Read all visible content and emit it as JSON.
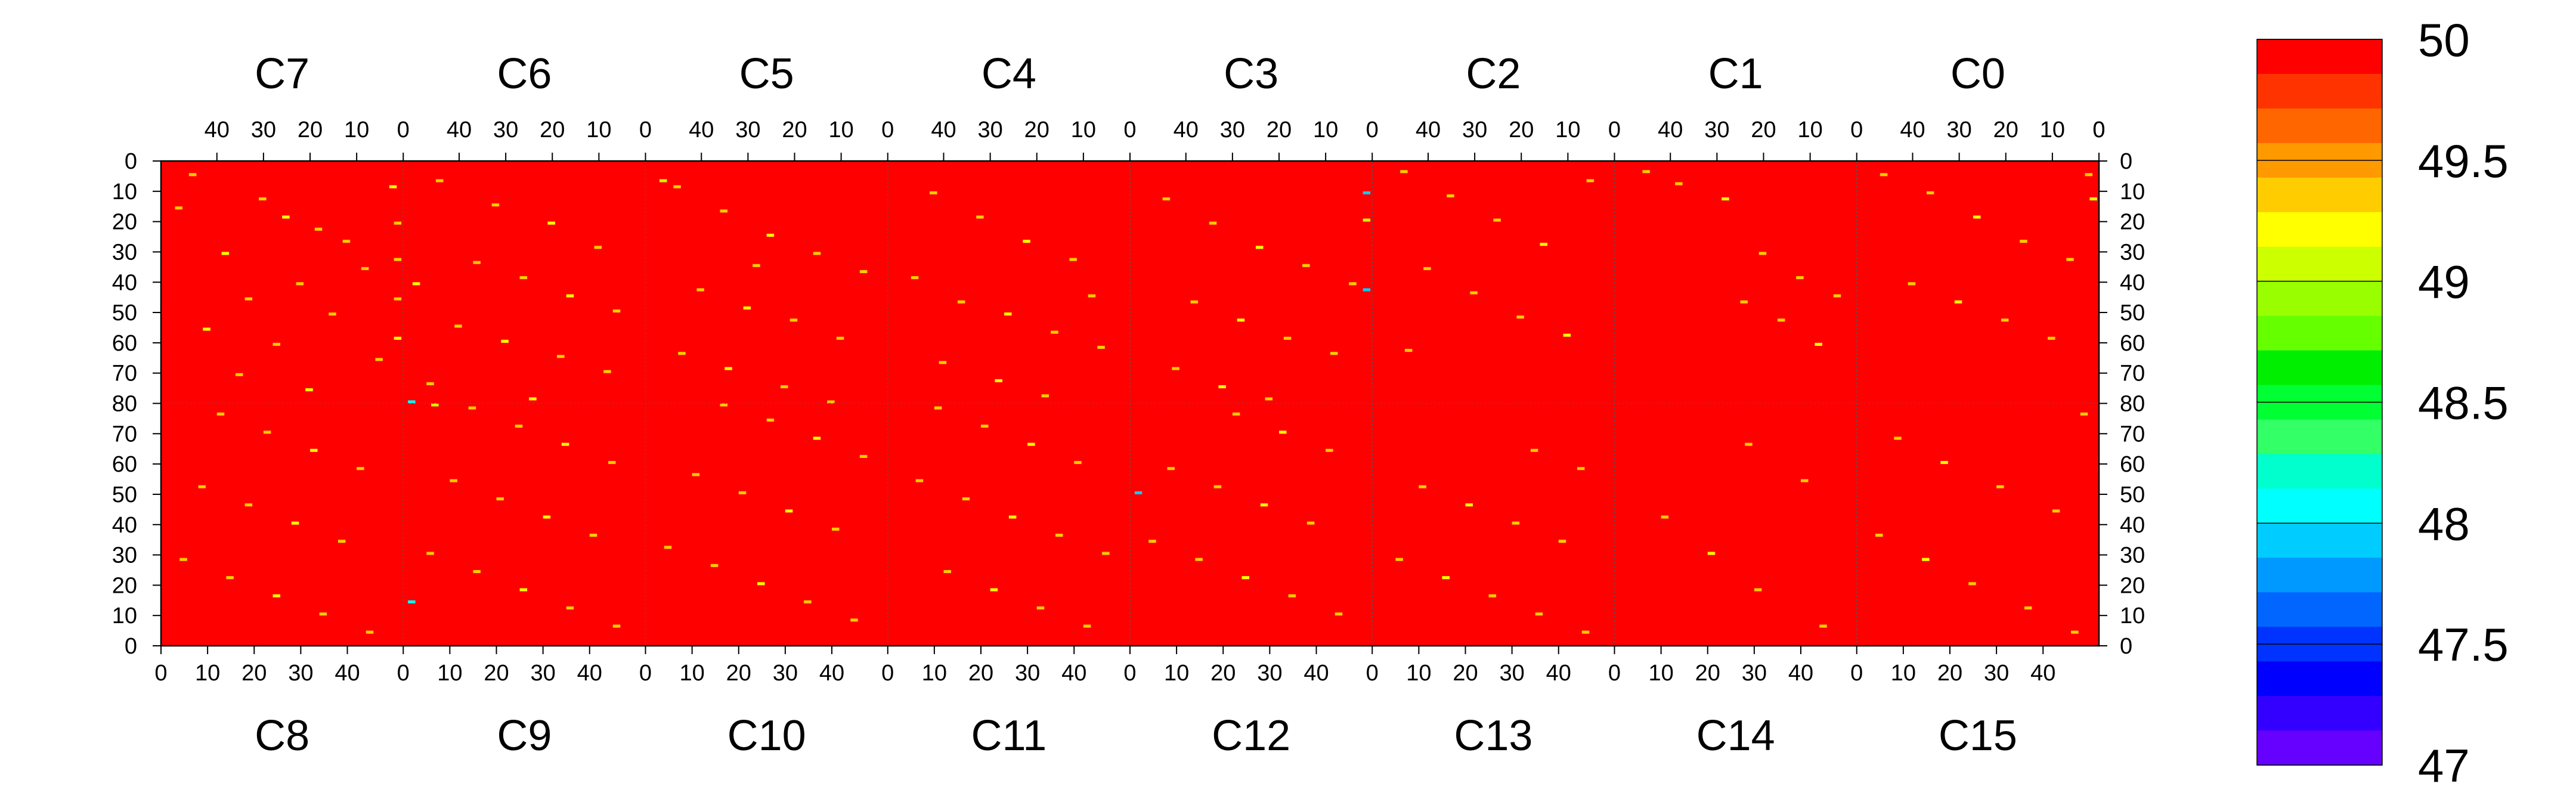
{
  "chart_data": {
    "type": "heatmap",
    "title": "",
    "top_chips": [
      "C7",
      "C6",
      "C5",
      "C4",
      "C3",
      "C2",
      "C1",
      "C0"
    ],
    "bottom_chips": [
      "C8",
      "C9",
      "C10",
      "C11",
      "C12",
      "C13",
      "C14",
      "C15"
    ],
    "x_range_per_chip": [
      0,
      52
    ],
    "x_ticks_top": [
      40,
      30,
      20,
      10,
      0
    ],
    "x_ticks_bottom": [
      0,
      10,
      20,
      30,
      40
    ],
    "y_range_per_half": [
      0,
      80
    ],
    "y_ticks_top": [
      0,
      10,
      20,
      30,
      40,
      50,
      60,
      70,
      80
    ],
    "y_ticks_bottom": [
      70,
      60,
      50,
      40,
      30,
      20,
      10,
      0
    ],
    "z_range": [
      47,
      50
    ],
    "background_value": 50,
    "colorbar": {
      "labels": [
        "50",
        "49.5",
        "49",
        "48.5",
        "48",
        "47.5",
        "47"
      ],
      "label_values": [
        50,
        49.5,
        49,
        48.5,
        48,
        47.5,
        47
      ],
      "colors": [
        "#ff0000",
        "#ff3300",
        "#ff6600",
        "#ff9900",
        "#ffcc00",
        "#ffff00",
        "#ccff00",
        "#99ff00",
        "#66ff00",
        "#00ee00",
        "#00ff33",
        "#33ff66",
        "#00ffcc",
        "#00ffff",
        "#00ccff",
        "#0099ff",
        "#0066ff",
        "#0033ff",
        "#0000ff",
        "#3300ff",
        "#6600ff"
      ]
    },
    "points": [
      [
        "C7",
        45,
        4,
        49.4
      ],
      [
        "C7",
        30,
        12,
        49.3
      ],
      [
        "C7",
        25,
        18,
        49.2
      ],
      [
        "C7",
        18,
        22,
        49.4
      ],
      [
        "C7",
        12,
        26,
        49.3
      ],
      [
        "C7",
        38,
        30,
        49.2
      ],
      [
        "C7",
        8,
        35,
        49.4
      ],
      [
        "C7",
        22,
        40,
        49.3
      ],
      [
        "C7",
        33,
        45,
        49.3
      ],
      [
        "C7",
        15,
        50,
        49.4
      ],
      [
        "C7",
        42,
        55,
        49.2
      ],
      [
        "C7",
        27,
        60,
        49.3
      ],
      [
        "C7",
        5,
        65,
        49.4
      ],
      [
        "C7",
        35,
        70,
        49.3
      ],
      [
        "C7",
        20,
        75,
        49.2
      ],
      [
        "C7",
        48,
        15,
        49.3
      ],
      [
        "C7",
        2,
        8,
        49.2
      ],
      [
        "C7",
        1,
        20,
        49.3
      ],
      [
        "C7",
        1,
        32,
        49.4
      ],
      [
        "C7",
        1,
        45,
        49.3
      ],
      [
        "C7",
        1,
        58,
        49.2
      ],
      [
        "C6",
        44,
        6,
        49.4
      ],
      [
        "C6",
        32,
        14,
        49.3
      ],
      [
        "C6",
        20,
        20,
        49.2
      ],
      [
        "C6",
        10,
        28,
        49.3
      ],
      [
        "C6",
        36,
        33,
        49.4
      ],
      [
        "C6",
        26,
        38,
        49.3
      ],
      [
        "C6",
        16,
        44,
        49.2
      ],
      [
        "C6",
        6,
        49,
        49.4
      ],
      [
        "C6",
        40,
        54,
        49.3
      ],
      [
        "C6",
        30,
        59,
        49.2
      ],
      [
        "C6",
        18,
        64,
        49.3
      ],
      [
        "C6",
        8,
        69,
        49.4
      ],
      [
        "C6",
        46,
        73,
        49.3
      ],
      [
        "C6",
        24,
        78,
        49.2
      ],
      [
        "C6",
        49,
        40,
        49.2
      ],
      [
        "C6",
        50,
        79,
        48.1
      ],
      [
        "C5",
        45,
        8,
        49.3
      ],
      [
        "C5",
        35,
        16,
        49.4
      ],
      [
        "C5",
        25,
        24,
        49.2
      ],
      [
        "C5",
        15,
        30,
        49.3
      ],
      [
        "C5",
        5,
        36,
        49.4
      ],
      [
        "C5",
        40,
        42,
        49.3
      ],
      [
        "C5",
        30,
        48,
        49.2
      ],
      [
        "C5",
        20,
        52,
        49.3
      ],
      [
        "C5",
        10,
        58,
        49.4
      ],
      [
        "C5",
        44,
        63,
        49.3
      ],
      [
        "C5",
        34,
        68,
        49.2
      ],
      [
        "C5",
        22,
        74,
        49.3
      ],
      [
        "C5",
        12,
        79,
        49.4
      ],
      [
        "C5",
        48,
        6,
        49.1
      ],
      [
        "C5",
        28,
        34,
        49.3
      ],
      [
        "C4",
        42,
        10,
        49.4
      ],
      [
        "C4",
        32,
        18,
        49.3
      ],
      [
        "C4",
        22,
        26,
        49.2
      ],
      [
        "C4",
        12,
        32,
        49.3
      ],
      [
        "C4",
        46,
        38,
        49.4
      ],
      [
        "C4",
        36,
        46,
        49.3
      ],
      [
        "C4",
        26,
        50,
        49.2
      ],
      [
        "C4",
        16,
        56,
        49.3
      ],
      [
        "C4",
        6,
        61,
        49.4
      ],
      [
        "C4",
        40,
        66,
        49.3
      ],
      [
        "C4",
        28,
        72,
        49.2
      ],
      [
        "C4",
        18,
        77,
        49.3
      ],
      [
        "C4",
        8,
        44,
        49.4
      ],
      [
        "C3",
        44,
        12,
        49.3
      ],
      [
        "C3",
        34,
        20,
        49.4
      ],
      [
        "C3",
        24,
        28,
        49.2
      ],
      [
        "C3",
        14,
        34,
        49.3
      ],
      [
        "C3",
        4,
        40,
        49.4
      ],
      [
        "C3",
        38,
        46,
        49.3
      ],
      [
        "C3",
        28,
        52,
        49.2
      ],
      [
        "C3",
        18,
        58,
        49.3
      ],
      [
        "C3",
        8,
        63,
        49.4
      ],
      [
        "C3",
        42,
        68,
        49.3
      ],
      [
        "C3",
        32,
        74,
        49.2
      ],
      [
        "C3",
        22,
        78,
        49.3
      ],
      [
        "C3",
        1,
        10,
        47.9
      ],
      [
        "C3",
        1,
        42,
        47.9
      ],
      [
        "C3",
        1,
        19,
        49.1
      ],
      [
        "C2",
        45,
        3,
        49.3
      ],
      [
        "C2",
        35,
        11,
        49.4
      ],
      [
        "C2",
        25,
        19,
        49.3
      ],
      [
        "C2",
        15,
        27,
        49.2
      ],
      [
        "C2",
        40,
        35,
        49.3
      ],
      [
        "C2",
        30,
        43,
        49.4
      ],
      [
        "C2",
        20,
        51,
        49.3
      ],
      [
        "C2",
        10,
        57,
        49.2
      ],
      [
        "C2",
        44,
        62,
        49.3
      ],
      [
        "C2",
        5,
        6,
        49.4
      ],
      [
        "C1",
        45,
        3,
        49.4
      ],
      [
        "C1",
        38,
        7,
        49.3
      ],
      [
        "C1",
        28,
        12,
        49.2
      ],
      [
        "C1",
        20,
        30,
        49.3
      ],
      [
        "C1",
        12,
        38,
        49.4
      ],
      [
        "C1",
        4,
        44,
        49.3
      ],
      [
        "C1",
        16,
        52,
        49.3
      ],
      [
        "C1",
        8,
        60,
        49.2
      ],
      [
        "C1",
        24,
        46,
        49.4
      ],
      [
        "C0",
        46,
        4,
        49.3
      ],
      [
        "C0",
        36,
        10,
        49.4
      ],
      [
        "C0",
        26,
        18,
        49.2
      ],
      [
        "C0",
        16,
        26,
        49.3
      ],
      [
        "C0",
        6,
        32,
        49.4
      ],
      [
        "C0",
        40,
        40,
        49.3
      ],
      [
        "C0",
        30,
        46,
        49.2
      ],
      [
        "C0",
        20,
        52,
        49.3
      ],
      [
        "C0",
        10,
        58,
        49.4
      ],
      [
        "C0",
        2,
        4,
        49.3
      ],
      [
        "C0",
        1,
        12,
        49.2
      ],
      [
        "C8",
        44,
        4,
        49.4
      ],
      [
        "C8",
        34,
        10,
        49.3
      ],
      [
        "C8",
        24,
        16,
        49.2
      ],
      [
        "C8",
        14,
        22,
        49.3
      ],
      [
        "C8",
        4,
        28,
        49.4
      ],
      [
        "C8",
        38,
        34,
        49.3
      ],
      [
        "C8",
        28,
        40,
        49.2
      ],
      [
        "C8",
        18,
        46,
        49.3
      ],
      [
        "C8",
        8,
        52,
        49.4
      ],
      [
        "C8",
        42,
        58,
        49.3
      ],
      [
        "C8",
        32,
        64,
        49.2
      ],
      [
        "C8",
        22,
        70,
        49.3
      ],
      [
        "C8",
        12,
        76,
        49.4
      ],
      [
        "C9",
        45,
        6,
        49.3
      ],
      [
        "C9",
        35,
        12,
        49.4
      ],
      [
        "C9",
        25,
        18,
        49.2
      ],
      [
        "C9",
        15,
        24,
        49.3
      ],
      [
        "C9",
        5,
        30,
        49.4
      ],
      [
        "C9",
        40,
        36,
        49.3
      ],
      [
        "C9",
        30,
        42,
        49.2
      ],
      [
        "C9",
        20,
        48,
        49.3
      ],
      [
        "C9",
        10,
        54,
        49.4
      ],
      [
        "C9",
        44,
        60,
        49.3
      ],
      [
        "C9",
        34,
        66,
        49.2
      ],
      [
        "C9",
        24,
        72,
        49.3
      ],
      [
        "C9",
        14,
        78,
        49.4
      ],
      [
        "C9",
        1,
        14,
        48.1
      ],
      [
        "C9",
        6,
        79,
        49.1
      ],
      [
        "C10",
        44,
        8,
        49.4
      ],
      [
        "C10",
        34,
        14,
        49.3
      ],
      [
        "C10",
        24,
        20,
        49.2
      ],
      [
        "C10",
        14,
        26,
        49.3
      ],
      [
        "C10",
        4,
        32,
        49.4
      ],
      [
        "C10",
        40,
        38,
        49.3
      ],
      [
        "C10",
        30,
        44,
        49.2
      ],
      [
        "C10",
        20,
        50,
        49.3
      ],
      [
        "C10",
        10,
        56,
        49.4
      ],
      [
        "C10",
        46,
        62,
        49.3
      ],
      [
        "C10",
        36,
        68,
        49.2
      ],
      [
        "C10",
        26,
        74,
        49.3
      ],
      [
        "C10",
        16,
        79,
        49.4
      ],
      [
        "C11",
        42,
        6,
        49.3
      ],
      [
        "C11",
        32,
        12,
        49.4
      ],
      [
        "C11",
        22,
        18,
        49.2
      ],
      [
        "C11",
        12,
        24,
        49.3
      ],
      [
        "C11",
        46,
        30,
        49.4
      ],
      [
        "C11",
        36,
        36,
        49.3
      ],
      [
        "C11",
        26,
        42,
        49.2
      ],
      [
        "C11",
        16,
        48,
        49.3
      ],
      [
        "C11",
        6,
        54,
        49.4
      ],
      [
        "C11",
        40,
        60,
        49.3
      ],
      [
        "C11",
        30,
        66,
        49.2
      ],
      [
        "C11",
        20,
        72,
        49.3
      ],
      [
        "C11",
        10,
        78,
        49.4
      ],
      [
        "C12",
        44,
        10,
        49.3
      ],
      [
        "C12",
        34,
        16,
        49.4
      ],
      [
        "C12",
        24,
        22,
        49.2
      ],
      [
        "C12",
        14,
        28,
        49.3
      ],
      [
        "C12",
        4,
        34,
        49.4
      ],
      [
        "C12",
        38,
        40,
        49.3
      ],
      [
        "C12",
        28,
        46,
        49.2
      ],
      [
        "C12",
        18,
        52,
        49.3
      ],
      [
        "C12",
        8,
        58,
        49.4
      ],
      [
        "C12",
        42,
        64,
        49.3
      ],
      [
        "C12",
        32,
        70,
        49.2
      ],
      [
        "C12",
        22,
        76,
        49.3
      ],
      [
        "C12",
        1,
        50,
        47.9
      ],
      [
        "C13",
        45,
        4,
        49.3
      ],
      [
        "C13",
        35,
        10,
        49.4
      ],
      [
        "C13",
        25,
        16,
        49.3
      ],
      [
        "C13",
        15,
        22,
        49.2
      ],
      [
        "C13",
        5,
        28,
        49.3
      ],
      [
        "C13",
        40,
        34,
        49.4
      ],
      [
        "C13",
        30,
        40,
        49.3
      ],
      [
        "C13",
        20,
        46,
        49.2
      ],
      [
        "C13",
        10,
        52,
        49.3
      ],
      [
        "C13",
        44,
        58,
        49.4
      ],
      [
        "C13",
        34,
        64,
        49.3
      ],
      [
        "C14",
        44,
        6,
        49.4
      ],
      [
        "C14",
        30,
        18,
        49.3
      ],
      [
        "C14",
        20,
        30,
        49.2
      ],
      [
        "C14",
        10,
        42,
        49.3
      ],
      [
        "C14",
        40,
        54,
        49.4
      ],
      [
        "C14",
        28,
        66,
        49.3
      ],
      [
        "C15",
        46,
        4,
        49.3
      ],
      [
        "C15",
        36,
        12,
        49.4
      ],
      [
        "C15",
        24,
        20,
        49.3
      ],
      [
        "C15",
        14,
        28,
        49.2
      ],
      [
        "C15",
        4,
        36,
        49.3
      ],
      [
        "C15",
        42,
        44,
        49.4
      ],
      [
        "C15",
        30,
        52,
        49.3
      ],
      [
        "C15",
        18,
        60,
        49.2
      ],
      [
        "C15",
        8,
        68,
        49.3
      ],
      [
        "C15",
        48,
        76,
        49.4
      ]
    ]
  }
}
